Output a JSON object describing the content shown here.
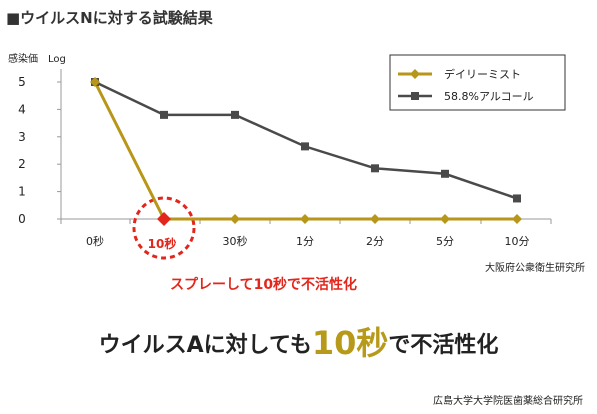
{
  "header": "■ウイルスNに対する試験結果",
  "y_axis_label": "感染価　Log",
  "source_top": "大阪府公衆衛生研究所",
  "annotation": "スプレーして10秒で不活性化",
  "headline": {
    "prefix": "ウイルスAに対しても",
    "emphasis": "10秒",
    "suffix": "で不活性化"
  },
  "source_bottom": "広島大学大学院医歯薬総合研究所",
  "colors": {
    "series1": "#b8961a",
    "series2": "#4a4a4a",
    "highlight": "#e3261c"
  },
  "chart_data": {
    "type": "line",
    "categories": [
      "0秒",
      "10秒",
      "30秒",
      "1分",
      "2分",
      "5分",
      "10分"
    ],
    "highlight_category": "10秒",
    "ylim": [
      0,
      5
    ],
    "yticks": [
      0,
      1,
      2,
      3,
      4,
      5
    ],
    "ylabel": "感染価　Log",
    "grid": false,
    "legend_position": "top-right",
    "series": [
      {
        "name": "デイリーミスト",
        "marker": "diamond",
        "values": [
          5,
          0,
          0,
          0,
          0,
          0,
          0
        ]
      },
      {
        "name": "58.8%アルコール",
        "marker": "square",
        "values": [
          5,
          3.8,
          3.8,
          2.65,
          1.85,
          1.65,
          0.75
        ]
      }
    ]
  }
}
